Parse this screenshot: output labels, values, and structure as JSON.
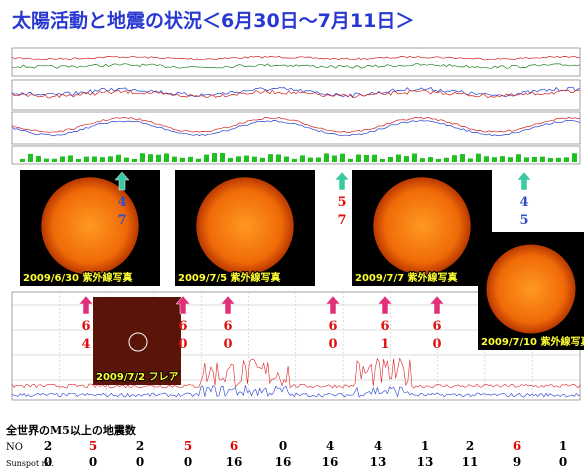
{
  "title": "太陽活動と地震の状況＜6月30日～7月11日＞",
  "photos": [
    {
      "caption": "2009/6/30 紫外線写真"
    },
    {
      "caption": "2009/7/5 紫外線写真"
    },
    {
      "caption": "2009/7/7 紫外線写真"
    },
    {
      "caption": "2009/7/10 紫外線写真"
    },
    {
      "caption": "2009/7/2 フレア"
    }
  ],
  "markers": [
    {
      "top": "4",
      "bottom": "7",
      "color": "#3050c8",
      "arrow_color": "#3cc8a0"
    },
    {
      "top": "5",
      "bottom": "7",
      "color": "#e01010",
      "arrow_color": "#3cc8a0"
    },
    {
      "top": "4",
      "bottom": "5",
      "color": "#3050c8",
      "arrow_color": "#3cc8a0"
    },
    {
      "top": "6",
      "bottom": "4",
      "color": "#e01010",
      "arrow_color": "#e0307a"
    },
    {
      "top": "6",
      "bottom": "0",
      "color": "#e01010",
      "arrow_color": "#e0307a"
    },
    {
      "top": "6",
      "bottom": "0",
      "color": "#e01010",
      "arrow_color": "#e0307a"
    },
    {
      "top": "6",
      "bottom": "0",
      "color": "#e01010",
      "arrow_color": "#e0307a"
    },
    {
      "top": "6",
      "bottom": "1",
      "color": "#e01010",
      "arrow_color": "#e0307a"
    },
    {
      "top": "6",
      "bottom": "0",
      "color": "#e01010",
      "arrow_color": "#e0307a"
    }
  ],
  "table": {
    "heading": "全世界のM5以上の地震数",
    "rows": [
      {
        "label": "NO",
        "values": [
          2,
          5,
          2,
          5,
          6,
          0,
          4,
          4,
          1,
          2,
          6,
          1
        ],
        "colors": [
          "#000",
          "#e00000",
          "#000",
          "#e00000",
          "#e00000",
          "#000",
          "#000",
          "#000",
          "#000",
          "#000",
          "#e00000",
          "#000"
        ]
      },
      {
        "label": "Sunspot no.",
        "values": [
          0,
          0,
          0,
          0,
          16,
          16,
          16,
          13,
          13,
          11,
          9,
          0
        ],
        "colors": [
          "#000",
          "#000",
          "#000",
          "#000",
          "#000",
          "#000",
          "#000",
          "#000",
          "#000",
          "#000",
          "#000",
          "#000"
        ]
      }
    ]
  }
}
